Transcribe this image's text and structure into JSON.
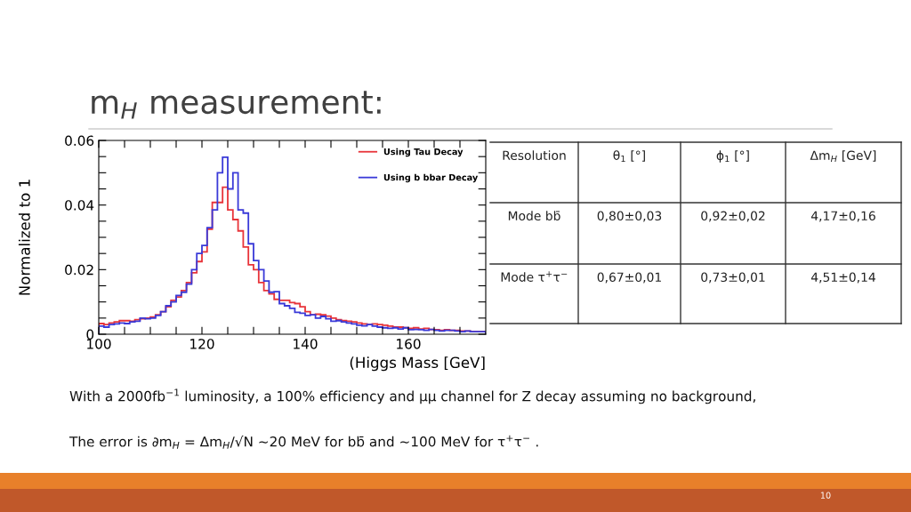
{
  "chart_data": {
    "type": "histogram",
    "title": "m$_{H}$ measurement:",
    "xlabel": "(Higgs Mass [GeV]",
    "ylabel": "Normalized to 1",
    "bins": [
      100,
      101,
      102,
      103,
      104,
      105,
      106,
      107,
      108,
      109,
      110,
      111,
      112,
      113,
      114,
      115,
      116,
      117,
      118,
      119,
      120,
      121,
      122,
      123,
      124,
      125,
      126,
      127,
      128,
      129,
      130,
      131,
      132,
      133,
      134,
      135,
      136,
      137,
      138,
      139,
      140,
      141,
      142,
      143,
      144,
      145,
      146,
      147,
      148,
      149,
      150,
      151,
      152,
      153,
      154,
      155,
      156,
      157,
      158,
      159,
      160,
      161,
      162,
      163,
      164,
      165,
      166,
      167,
      168,
      169,
      170,
      171,
      172,
      173,
      174,
      175
    ],
    "series": [
      {
        "name": "Using Tau Decay",
        "color": "#e8343a",
        "values": [
          0.0033,
          0.003,
          0.0035,
          0.0038,
          0.0042,
          0.0042,
          0.004,
          0.0045,
          0.0048,
          0.005,
          0.0053,
          0.006,
          0.007,
          0.0085,
          0.0105,
          0.0115,
          0.0135,
          0.016,
          0.019,
          0.0225,
          0.0255,
          0.0325,
          0.0408,
          0.0408,
          0.0455,
          0.0385,
          0.0355,
          0.032,
          0.027,
          0.0215,
          0.02,
          0.016,
          0.0135,
          0.0125,
          0.0108,
          0.0105,
          0.0105,
          0.0098,
          0.0095,
          0.0085,
          0.007,
          0.006,
          0.0062,
          0.006,
          0.0056,
          0.005,
          0.0045,
          0.0042,
          0.004,
          0.0038,
          0.0035,
          0.0032,
          0.003,
          0.0032,
          0.003,
          0.0028,
          0.0025,
          0.0022,
          0.0022,
          0.002,
          0.0018,
          0.002,
          0.0016,
          0.0018,
          0.0015,
          0.0014,
          0.0012,
          0.0014,
          0.0012,
          0.0012,
          0.001,
          0.001,
          0.0008,
          0.0008,
          0.0008
        ]
      },
      {
        "name": "Using b bbar Decay",
        "color": "#3a3ad8",
        "values": [
          0.0025,
          0.0022,
          0.003,
          0.0032,
          0.0035,
          0.0033,
          0.0038,
          0.004,
          0.005,
          0.0048,
          0.005,
          0.0058,
          0.007,
          0.0088,
          0.01,
          0.012,
          0.013,
          0.0155,
          0.02,
          0.025,
          0.0275,
          0.033,
          0.0385,
          0.05,
          0.0548,
          0.045,
          0.05,
          0.0385,
          0.0375,
          0.028,
          0.0228,
          0.02,
          0.0165,
          0.013,
          0.0132,
          0.0095,
          0.0088,
          0.008,
          0.0068,
          0.0065,
          0.0058,
          0.006,
          0.005,
          0.0055,
          0.0048,
          0.004,
          0.0042,
          0.0038,
          0.0035,
          0.0032,
          0.0028,
          0.0026,
          0.003,
          0.0025,
          0.0022,
          0.002,
          0.0018,
          0.002,
          0.0016,
          0.002,
          0.0014,
          0.0015,
          0.0014,
          0.0012,
          0.0015,
          0.0012,
          0.001,
          0.0012,
          0.0012,
          0.001,
          0.0008,
          0.001,
          0.0008,
          0.0008,
          0.0008
        ]
      }
    ],
    "xlim": [
      100,
      175
    ],
    "ylim": [
      0,
      0.06
    ],
    "xticks": [
      100,
      {
        "value": 105,
        "label": null
      },
      {
        "value": 110,
        "label": null
      },
      {
        "value": 115,
        "label": null
      },
      120,
      {
        "value": 125,
        "label": null
      },
      {
        "value": 130,
        "label": null
      },
      {
        "value": 135,
        "label": null
      },
      140,
      {
        "value": 145,
        "label": null
      },
      {
        "value": 150,
        "label": null
      },
      {
        "value": 155,
        "label": null
      },
      160,
      {
        "value": 165,
        "label": null
      },
      {
        "value": 170,
        "label": null
      }
    ],
    "yticks": [
      {
        "value": 0,
        "label": "0"
      },
      {
        "value": 0.005,
        "label": null
      },
      {
        "value": 0.01,
        "label": null
      },
      {
        "value": 0.015,
        "label": null
      },
      0.02,
      {
        "value": 0.025,
        "label": null
      },
      {
        "value": 0.03,
        "label": null
      },
      {
        "value": 0.035,
        "label": null
      },
      0.04,
      {
        "value": 0.045,
        "label": null
      },
      {
        "value": 0.05,
        "label": null
      },
      {
        "value": 0.055,
        "label": null
      },
      0.06
    ],
    "grid": false,
    "legend": "top right",
    "annotations": [
      "Resolution",
      "θ$_{1}$ [°]",
      "ϕ$_{1}$ [°]",
      "Δm$_{H}$ [GeV]",
      "Mode bb̄",
      "0,80±0,03",
      "0,92±0,02",
      "4,17±0,16",
      "Mode τ$^{+}$τ$^{−}$",
      "0,67±0,01",
      "0,73±0,01",
      "4,51±0,14",
      "With a 2000fb$^{−1}$ luminosity, a 100% efficiency and μμ channel for Z decay assuming no background,",
      "The error is ∂m$_{H}$ = Δm$_{H}$/√N ~20 MeV for bb̄ and ~100 MeV for τ$^{+}$τ$^{−}$ .",
      "10"
    ]
  }
}
